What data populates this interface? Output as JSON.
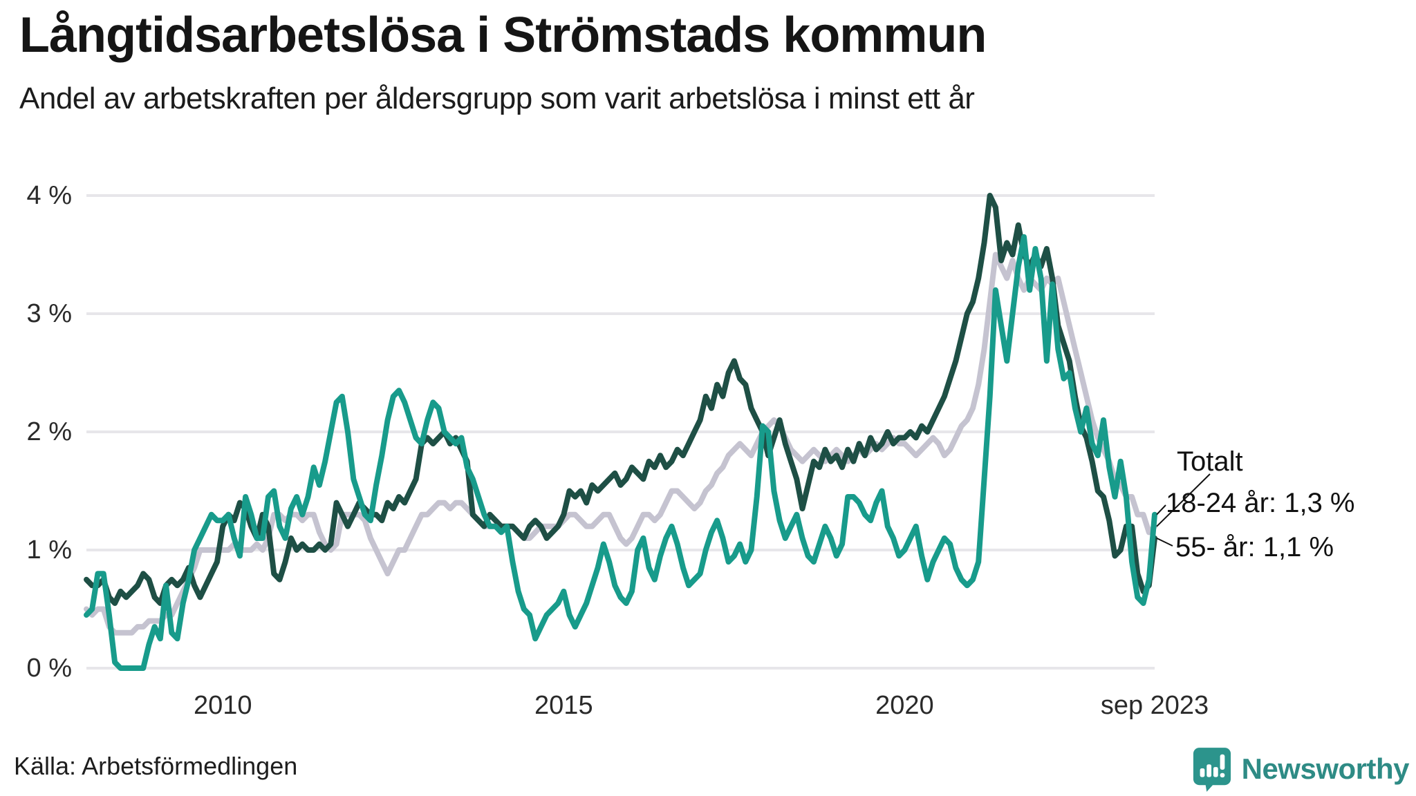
{
  "header": {
    "title": "Långtidsarbetslösa i Strömstads kommun",
    "subtitle": "Andel av arbetskraften per åldersgrupp som varit arbetslösa i minst ett år"
  },
  "chart_data": {
    "type": "line",
    "unit": "%",
    "x_start": "2008-01",
    "x_end": "2023-09",
    "x_frequency": "monthly",
    "ylim": [
      0,
      4
    ],
    "grid": "horizontal",
    "gridline_color": "#e7e6ea",
    "ytick_labels": [
      "0 %",
      "1 %",
      "2 %",
      "3 %",
      "4 %"
    ],
    "xticks": [
      {
        "label": "2010",
        "month_index": 24
      },
      {
        "label": "2015",
        "month_index": 84
      },
      {
        "label": "2020",
        "month_index": 144
      },
      {
        "label": "sep 2023",
        "month_index": 188
      }
    ],
    "series": [
      {
        "name": "Totalt",
        "color": "#c5c3d0",
        "end_value": 1.2,
        "values": [
          0.5,
          0.45,
          0.5,
          0.5,
          0.35,
          0.3,
          0.3,
          0.3,
          0.3,
          0.35,
          0.35,
          0.4,
          0.4,
          0.4,
          0.45,
          0.45,
          0.55,
          0.65,
          0.75,
          0.85,
          1.0,
          1.0,
          1.0,
          1.0,
          1.0,
          1.0,
          1.05,
          1.0,
          1.0,
          1.0,
          1.05,
          1.0,
          1.1,
          1.3,
          1.3,
          1.25,
          1.3,
          1.3,
          1.25,
          1.3,
          1.3,
          1.15,
          1.05,
          1.0,
          1.05,
          1.3,
          1.3,
          1.3,
          1.3,
          1.25,
          1.1,
          1.0,
          0.9,
          0.8,
          0.9,
          1.0,
          1.0,
          1.1,
          1.2,
          1.3,
          1.3,
          1.35,
          1.4,
          1.4,
          1.35,
          1.4,
          1.4,
          1.35,
          1.3,
          1.25,
          1.2,
          1.2,
          1.2,
          1.2,
          1.2,
          1.2,
          1.15,
          1.1,
          1.1,
          1.15,
          1.2,
          1.2,
          1.2,
          1.2,
          1.25,
          1.3,
          1.3,
          1.25,
          1.2,
          1.2,
          1.25,
          1.3,
          1.3,
          1.2,
          1.1,
          1.05,
          1.1,
          1.2,
          1.3,
          1.3,
          1.25,
          1.3,
          1.4,
          1.5,
          1.5,
          1.45,
          1.4,
          1.35,
          1.4,
          1.5,
          1.55,
          1.65,
          1.7,
          1.8,
          1.85,
          1.9,
          1.85,
          1.8,
          1.9,
          2.0,
          2.05,
          2.1,
          2.05,
          1.95,
          1.85,
          1.8,
          1.75,
          1.8,
          1.85,
          1.8,
          1.75,
          1.8,
          1.85,
          1.8,
          1.75,
          1.8,
          1.85,
          1.8,
          1.85,
          1.9,
          1.85,
          1.9,
          1.95,
          1.9,
          1.9,
          1.85,
          1.8,
          1.85,
          1.9,
          1.95,
          1.9,
          1.8,
          1.85,
          1.95,
          2.05,
          2.1,
          2.2,
          2.4,
          2.7,
          3.1,
          3.5,
          3.4,
          3.3,
          3.45,
          3.3,
          3.2,
          3.3,
          3.25,
          3.2,
          3.3,
          3.25,
          3.3,
          3.1,
          2.9,
          2.7,
          2.5,
          2.3,
          2.1,
          1.95,
          1.85,
          1.75,
          1.6,
          1.55,
          1.45,
          1.45,
          1.3,
          1.3,
          1.15,
          1.2
        ]
      },
      {
        "name": "55- år",
        "color": "#1e4f45",
        "end_value": 1.1,
        "values": [
          0.75,
          0.7,
          0.7,
          0.75,
          0.6,
          0.55,
          0.65,
          0.6,
          0.65,
          0.7,
          0.8,
          0.75,
          0.6,
          0.55,
          0.7,
          0.75,
          0.7,
          0.75,
          0.85,
          0.7,
          0.6,
          0.7,
          0.8,
          0.9,
          1.2,
          1.3,
          1.25,
          1.4,
          1.35,
          1.2,
          1.1,
          1.3,
          1.2,
          0.8,
          0.75,
          0.9,
          1.1,
          1.0,
          1.05,
          1.0,
          1.0,
          1.05,
          1.0,
          1.05,
          1.4,
          1.3,
          1.2,
          1.3,
          1.4,
          1.35,
          1.3,
          1.3,
          1.25,
          1.4,
          1.35,
          1.45,
          1.4,
          1.5,
          1.6,
          1.9,
          1.95,
          1.9,
          1.95,
          2.0,
          1.9,
          1.95,
          1.85,
          1.75,
          1.3,
          1.25,
          1.2,
          1.3,
          1.25,
          1.2,
          1.2,
          1.2,
          1.15,
          1.1,
          1.2,
          1.25,
          1.2,
          1.1,
          1.15,
          1.2,
          1.3,
          1.5,
          1.45,
          1.5,
          1.4,
          1.55,
          1.5,
          1.55,
          1.6,
          1.65,
          1.55,
          1.6,
          1.7,
          1.65,
          1.6,
          1.75,
          1.7,
          1.8,
          1.7,
          1.75,
          1.85,
          1.8,
          1.9,
          2.0,
          2.1,
          2.3,
          2.2,
          2.4,
          2.3,
          2.5,
          2.6,
          2.45,
          2.4,
          2.2,
          2.1,
          2.0,
          1.8,
          1.95,
          2.1,
          1.9,
          1.75,
          1.6,
          1.35,
          1.55,
          1.75,
          1.7,
          1.85,
          1.75,
          1.8,
          1.7,
          1.85,
          1.75,
          1.9,
          1.8,
          1.95,
          1.85,
          1.9,
          2.0,
          1.9,
          1.95,
          1.95,
          2.0,
          1.95,
          2.05,
          2.0,
          2.1,
          2.2,
          2.3,
          2.45,
          2.6,
          2.8,
          3.0,
          3.1,
          3.3,
          3.6,
          4.0,
          3.9,
          3.45,
          3.6,
          3.5,
          3.75,
          3.5,
          3.4,
          3.5,
          3.4,
          3.55,
          3.3,
          2.9,
          2.75,
          2.6,
          2.3,
          2.05,
          1.95,
          1.75,
          1.5,
          1.45,
          1.25,
          0.95,
          1.0,
          1.2,
          1.2,
          0.8,
          0.65,
          0.7,
          1.1
        ]
      },
      {
        "name": "18-24 år",
        "color": "#189b8b",
        "end_value": 1.3,
        "values": [
          0.45,
          0.5,
          0.8,
          0.8,
          0.45,
          0.05,
          0.0,
          0.0,
          0.0,
          0.0,
          0.0,
          0.2,
          0.35,
          0.25,
          0.7,
          0.3,
          0.25,
          0.55,
          0.75,
          1.0,
          1.1,
          1.2,
          1.3,
          1.25,
          1.25,
          1.3,
          1.1,
          0.95,
          1.45,
          1.3,
          1.1,
          1.1,
          1.45,
          1.5,
          1.2,
          1.1,
          1.35,
          1.45,
          1.3,
          1.45,
          1.7,
          1.55,
          1.75,
          2.0,
          2.25,
          2.3,
          2.0,
          1.6,
          1.45,
          1.3,
          1.25,
          1.55,
          1.8,
          2.1,
          2.3,
          2.35,
          2.25,
          2.1,
          1.95,
          1.9,
          2.1,
          2.25,
          2.2,
          2.0,
          1.95,
          1.9,
          1.95,
          1.7,
          1.6,
          1.45,
          1.3,
          1.2,
          1.2,
          1.15,
          1.2,
          0.9,
          0.65,
          0.5,
          0.45,
          0.25,
          0.35,
          0.45,
          0.5,
          0.55,
          0.65,
          0.45,
          0.35,
          0.45,
          0.55,
          0.7,
          0.85,
          1.05,
          0.9,
          0.7,
          0.6,
          0.55,
          0.65,
          1.0,
          1.1,
          0.85,
          0.75,
          0.95,
          1.1,
          1.2,
          1.05,
          0.85,
          0.7,
          0.75,
          0.8,
          1.0,
          1.15,
          1.25,
          1.1,
          0.9,
          0.95,
          1.05,
          0.9,
          1.0,
          1.45,
          2.05,
          2.0,
          1.5,
          1.25,
          1.1,
          1.2,
          1.3,
          1.1,
          0.95,
          0.9,
          1.05,
          1.2,
          1.1,
          0.95,
          1.05,
          1.45,
          1.45,
          1.4,
          1.3,
          1.25,
          1.4,
          1.5,
          1.2,
          1.1,
          0.95,
          1.0,
          1.1,
          1.2,
          0.95,
          0.75,
          0.9,
          1.0,
          1.1,
          1.05,
          0.85,
          0.75,
          0.7,
          0.75,
          0.9,
          1.6,
          2.3,
          3.2,
          2.9,
          2.6,
          3.0,
          3.4,
          3.65,
          3.2,
          3.55,
          3.3,
          2.6,
          3.25,
          2.7,
          2.45,
          2.5,
          2.2,
          2.0,
          2.2,
          1.9,
          1.8,
          2.1,
          1.7,
          1.45,
          1.75,
          1.45,
          0.9,
          0.6,
          0.55,
          0.75,
          1.3
        ]
      }
    ],
    "annotations": [
      {
        "text": "Totalt",
        "series": "Totalt"
      },
      {
        "text": "18-24 år: 1,3 %",
        "series": "18-24 år"
      },
      {
        "text": "55- år: 1,1 %",
        "series": "55- år"
      }
    ]
  },
  "footer": {
    "source": "Källa: Arbetsförmedlingen",
    "brand": "Newsworthy",
    "brand_color": "#2e8b85",
    "icon_color": "#2c948c"
  }
}
